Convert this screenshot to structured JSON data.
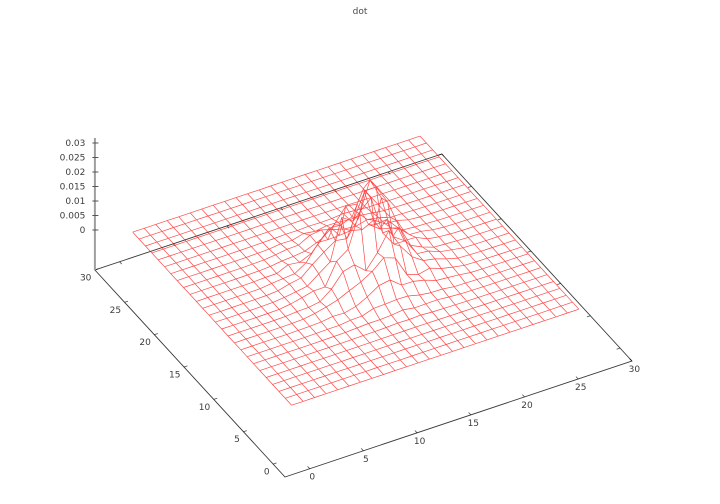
{
  "chart_data": {
    "type": "surface3d-wireframe",
    "title": "dot",
    "x_ticks": [
      0,
      5,
      10,
      15,
      20,
      25,
      30
    ],
    "x_tick_labels": [
      "0",
      "5",
      "10",
      "15",
      "20",
      "25",
      "30"
    ],
    "y_ticks": [
      0,
      5,
      10,
      15,
      20,
      25,
      30
    ],
    "y_tick_labels": [
      "0",
      "5",
      "10",
      "15",
      "20",
      "25",
      "30"
    ],
    "z_ticks": [
      0,
      0.005,
      0.01,
      0.015,
      0.02,
      0.025,
      0.03
    ],
    "z_tick_labels": [
      "0",
      "0.005",
      "0.01",
      "0.015",
      "0.02",
      "0.025",
      "0.03"
    ],
    "x_range": [
      -2.3,
      30
    ],
    "y_range": [
      -2,
      30
    ],
    "z_range": [
      0,
      0.03
    ],
    "grid_on": false,
    "legend": "none",
    "mesh_color": "#ff0000",
    "axis_color": "#000000",
    "z_axis_color": "#9e9e9e",
    "tick_color": "#555555",
    "label_color": "#3d3d3d",
    "surface": {
      "nx": 26,
      "ny": 26,
      "x_min": 0.25,
      "x_max": 27.0,
      "y_min": 1.5,
      "y_max": 28.25,
      "peak_cx": 14.3,
      "peak_cy": 14.6,
      "peak_amplitude": 0.024,
      "peak_sigma": 3.0,
      "peak_power": 1.5,
      "noise": 0.6,
      "z_max": 0.028,
      "seed": 42,
      "flat_level": 0
    }
  }
}
